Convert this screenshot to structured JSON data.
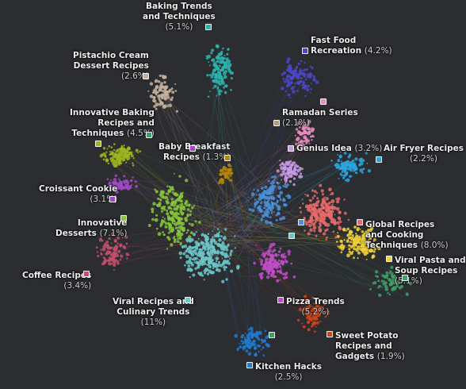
{
  "clusters": [
    {
      "id": "baking-trends",
      "name": "Baking Trends and Techniques",
      "line1": "Baking Trends",
      "line2": "and Techniques",
      "pct": "(5.1%)",
      "color": "#2fb3ad"
    },
    {
      "id": "fast-food",
      "name": "Fast Food Recreation",
      "line1": "Fast Food",
      "line2": "Recreation",
      "pct": "(4.2%)",
      "color": "#4b47c9"
    },
    {
      "id": "pistachio",
      "name": "Pistachio Cream Dessert Recipes",
      "line1": "Pistachio Cream",
      "line2": "Dessert Recipes",
      "pct": "(2.6%)",
      "color": "#c7b29e"
    },
    {
      "id": "ramadan",
      "name": "Ramadan Series",
      "line1": "Ramadan Series",
      "pct": "(2.1%)",
      "color": "#e88dc0"
    },
    {
      "id": "innovative-baking",
      "name": "Innovative Baking Recipes and Techniques",
      "line1": "Innovative Baking",
      "line2": "Recipes and",
      "line3": "Techniques",
      "pct": "(4.5%)",
      "color": "#9fb51f"
    },
    {
      "id": "baby-breakfast",
      "name": "Baby Breakfast Recipes",
      "line1": "Baby Breakfast",
      "line2": "Recipes",
      "pct": "(1.3%)",
      "color": "#b8860b"
    },
    {
      "id": "genius-idea",
      "name": "Genius Idea",
      "line1": "Genius Idea",
      "pct": "(3.2%)",
      "color": "#c79ae6"
    },
    {
      "id": "air-fryer",
      "name": "Air Fryer Recipes",
      "line1": "Air Fryer Recipes",
      "pct": "(2.2%)",
      "color": "#2aa6e0"
    },
    {
      "id": "croissant",
      "name": "Croissant Cookie",
      "line1": "Croissant Cookie",
      "pct": "(3.1%)",
      "color": "#a249c9"
    },
    {
      "id": "innovative-desserts",
      "name": "Innovative Desserts",
      "line1": "Innovative",
      "line2": "Desserts",
      "pct": "(7.1%)",
      "color": "#86c63b"
    },
    {
      "id": "global-recipes",
      "name": "Global Recipes and Cooking Techniques",
      "line1": "Global Recipes",
      "line2": "and Cooking",
      "line3": "Techniques",
      "pct": "(8.0%)",
      "color": "#e96a6a"
    },
    {
      "id": "viral-pasta",
      "name": "Viral Pasta and Soup Recipes",
      "line1": "Viral Pasta and",
      "line2": "Soup Recipes",
      "pct": "(5.1%)",
      "color": "#f0d23a"
    },
    {
      "id": "coffee",
      "name": "Coffee Recipes",
      "line1": "Coffee Recipes",
      "pct": "(3.4%)",
      "color": "#c44f6c"
    },
    {
      "id": "viral-culinary",
      "name": "Viral Recipes and Culinary Trends",
      "line1": "Viral Recipes and",
      "line2": "Culinary Trends",
      "pct": "(11%)",
      "color": "#6cc7c9"
    },
    {
      "id": "pizza",
      "name": "Pizza Trends",
      "line1": "Pizza Trends",
      "pct": "(5.2%)",
      "color": "#c14fc8"
    },
    {
      "id": "sweet-potato",
      "name": "Sweet Potato Recipes and Gadgets",
      "line1": "Sweet Potato",
      "line2": "Recipes and",
      "line3": "Gadgets",
      "pct": "(1.9%)",
      "color": "#d1461b"
    },
    {
      "id": "kitchen-hacks",
      "name": "Kitchen Hacks",
      "line1": "Kitchen Hacks",
      "pct": "(2.5%)",
      "color": "#1f7ad1"
    },
    {
      "id": "blue-center",
      "name": "",
      "color": "#4a90d9"
    },
    {
      "id": "green-lower",
      "name": "",
      "color": "#3da067"
    }
  ]
}
